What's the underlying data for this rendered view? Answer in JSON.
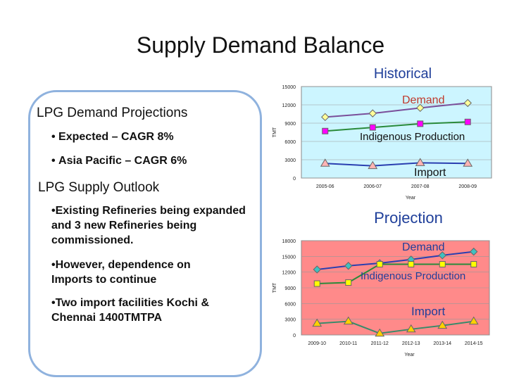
{
  "slide": {
    "title": "Supply Demand Balance"
  },
  "left": {
    "demand_heading": "LPG Demand Projections",
    "demand_bullets": [
      "Expected – CAGR 8%",
      "Asia Pacific – CAGR 6%"
    ],
    "supply_heading": "LPG Supply Outlook",
    "supply_bullets": [
      "Existing Refineries being expanded and 3 new Refineries being commissioned.",
      "However, dependence on Imports to continue",
      "Two import facilities Kochi & Chennai 1400TMTPA"
    ]
  },
  "colors": {
    "demand": "#7a4f9a",
    "demand_proj": "#2a3fb0",
    "indigenous": "#2a8a3a",
    "import": "#3a4fb5"
  },
  "chart_data": [
    {
      "type": "line",
      "title": "Historical",
      "xlabel": "Year",
      "ylabel": "TMT",
      "categories": [
        "2005-06",
        "2006-07",
        "2007-08",
        "2008-09"
      ],
      "yticks": [
        0,
        3000,
        6000,
        9000,
        12000,
        15000
      ],
      "ylim": [
        0,
        15000
      ],
      "background": "#ccf5ff",
      "series": [
        {
          "name": "Demand",
          "values": [
            10000,
            10600,
            11500,
            12300
          ],
          "color": "#7a4f9a",
          "marker": "#ffff99"
        },
        {
          "name": "Indigenous Production",
          "values": [
            7700,
            8300,
            8900,
            9200
          ],
          "color": "#2a8a3a",
          "marker": "#ff00ff"
        },
        {
          "name": "Import",
          "values": [
            2400,
            2000,
            2500,
            2400
          ],
          "color": "#2a3fb0",
          "marker": "#ffb4b4"
        }
      ]
    },
    {
      "type": "line",
      "title": "Projection",
      "xlabel": "Year",
      "ylabel": "TMT",
      "categories": [
        "2009-10",
        "2010-11",
        "2011-12",
        "2012-13",
        "2013-14",
        "2014-15"
      ],
      "yticks": [
        0,
        3000,
        6000,
        9000,
        12000,
        15000,
        18000
      ],
      "ylim": [
        0,
        18000
      ],
      "background": "#ff8a8a",
      "series": [
        {
          "name": "Demand",
          "values": [
            12500,
            13200,
            13700,
            14400,
            15200,
            15900
          ],
          "color": "#2a3fb0",
          "marker": "#40c0c0"
        },
        {
          "name": "Indigenous Production",
          "values": [
            9800,
            10000,
            13500,
            13500,
            13500,
            13500
          ],
          "color": "#2a8a3a",
          "marker": "#ffff00"
        },
        {
          "name": "Import",
          "values": [
            2200,
            2600,
            300,
            1100,
            1800,
            2600
          ],
          "color": "#3a8a6a",
          "marker": "#ffd000"
        }
      ]
    }
  ]
}
